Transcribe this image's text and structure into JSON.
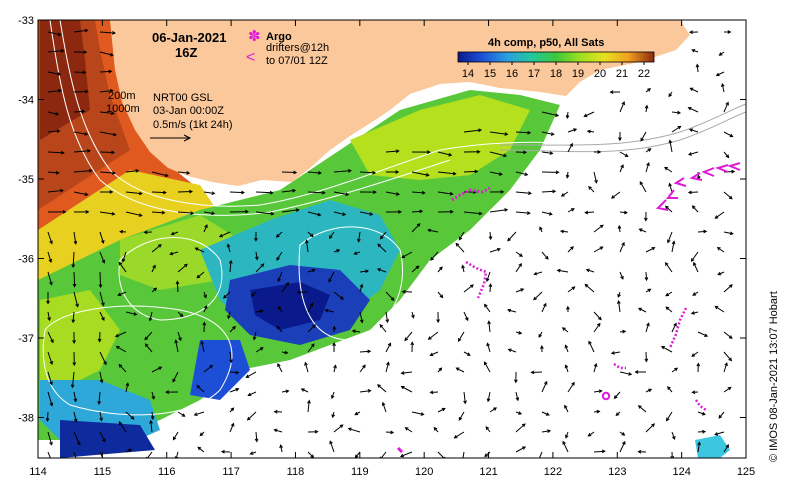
{
  "header": {
    "date": "06-Jan-2021",
    "hour": "16Z"
  },
  "argo": {
    "label": "Argo",
    "drifters_line1": "drifters@12h",
    "drifters_line2": "to 07/01 12Z",
    "marker_symbol": "✽",
    "drifter_symbol": "<"
  },
  "contours": {
    "depth1": "200m",
    "depth2": "1000m"
  },
  "currents": {
    "product": "NRT00 GSL",
    "time": "03-Jan 00:00Z",
    "scale": "0.5m/s (1kt 24h)"
  },
  "colorbar": {
    "title": "4h comp, p50, All Sats",
    "ticks": [
      "14",
      "15",
      "16",
      "17",
      "18",
      "19",
      "20",
      "21",
      "22"
    ],
    "colors": [
      "#0a1a8c",
      "#1c4fd6",
      "#2a9fe0",
      "#24c89a",
      "#3cc83c",
      "#9ae020",
      "#e8e020",
      "#f0a020",
      "#c85020",
      "#8c2810"
    ]
  },
  "axes": {
    "lon_ticks": [
      "114",
      "115",
      "116",
      "117",
      "118",
      "119",
      "120",
      "121",
      "122",
      "123",
      "124",
      "125"
    ],
    "lat_ticks": [
      "-33",
      "-34",
      "-35",
      "-36",
      "-37",
      "-38"
    ]
  },
  "credit": "© IMOS 08-Jan-2021 13:07 Hobart",
  "palette": {
    "land": "#fbc89b",
    "magenta": "#e01ad8"
  }
}
